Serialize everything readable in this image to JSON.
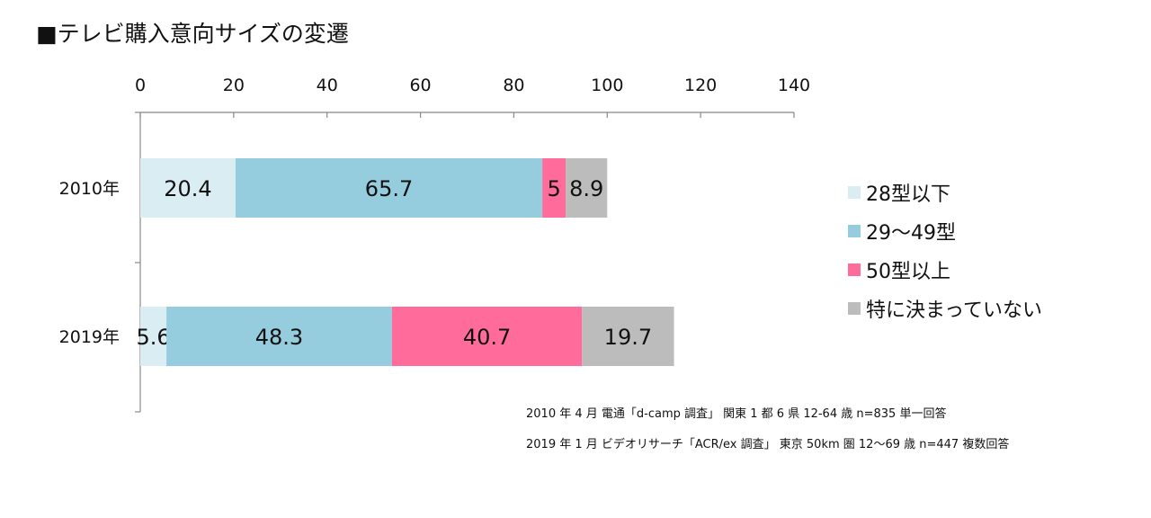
{
  "title": "■テレビ購入意向サイズの変遷",
  "chart_data": {
    "type": "bar",
    "orientation": "horizontal",
    "stacked": true,
    "categories": [
      "2010年",
      "2019年"
    ],
    "series": [
      {
        "name": "28型以下",
        "color": "#daedf3",
        "values": [
          20.4,
          5.6
        ]
      },
      {
        "name": "29～49型",
        "color": "#95cddf",
        "values": [
          65.7,
          48.3
        ]
      },
      {
        "name": "50型以上",
        "color": "#ff6b9b",
        "values": [
          5,
          40.7
        ]
      },
      {
        "name": "特に決まっていない",
        "color": "#bcbcbc",
        "values": [
          8.9,
          19.7
        ]
      }
    ],
    "xlim": [
      0,
      140
    ],
    "xticks": [
      0,
      20,
      40,
      60,
      80,
      100,
      120,
      140
    ],
    "axis_position": "top",
    "grid": false,
    "legend": "right"
  },
  "notes": [
    "2010 年 4 月  電通「d-camp 調査」 関東 1 都 6 県  12-64 歳  n=835  単一回答",
    "2019 年 1 月  ビデオリサーチ「ACR/ex 調査」 東京 50km 圏  12～69 歳  n=447  複数回答"
  ]
}
